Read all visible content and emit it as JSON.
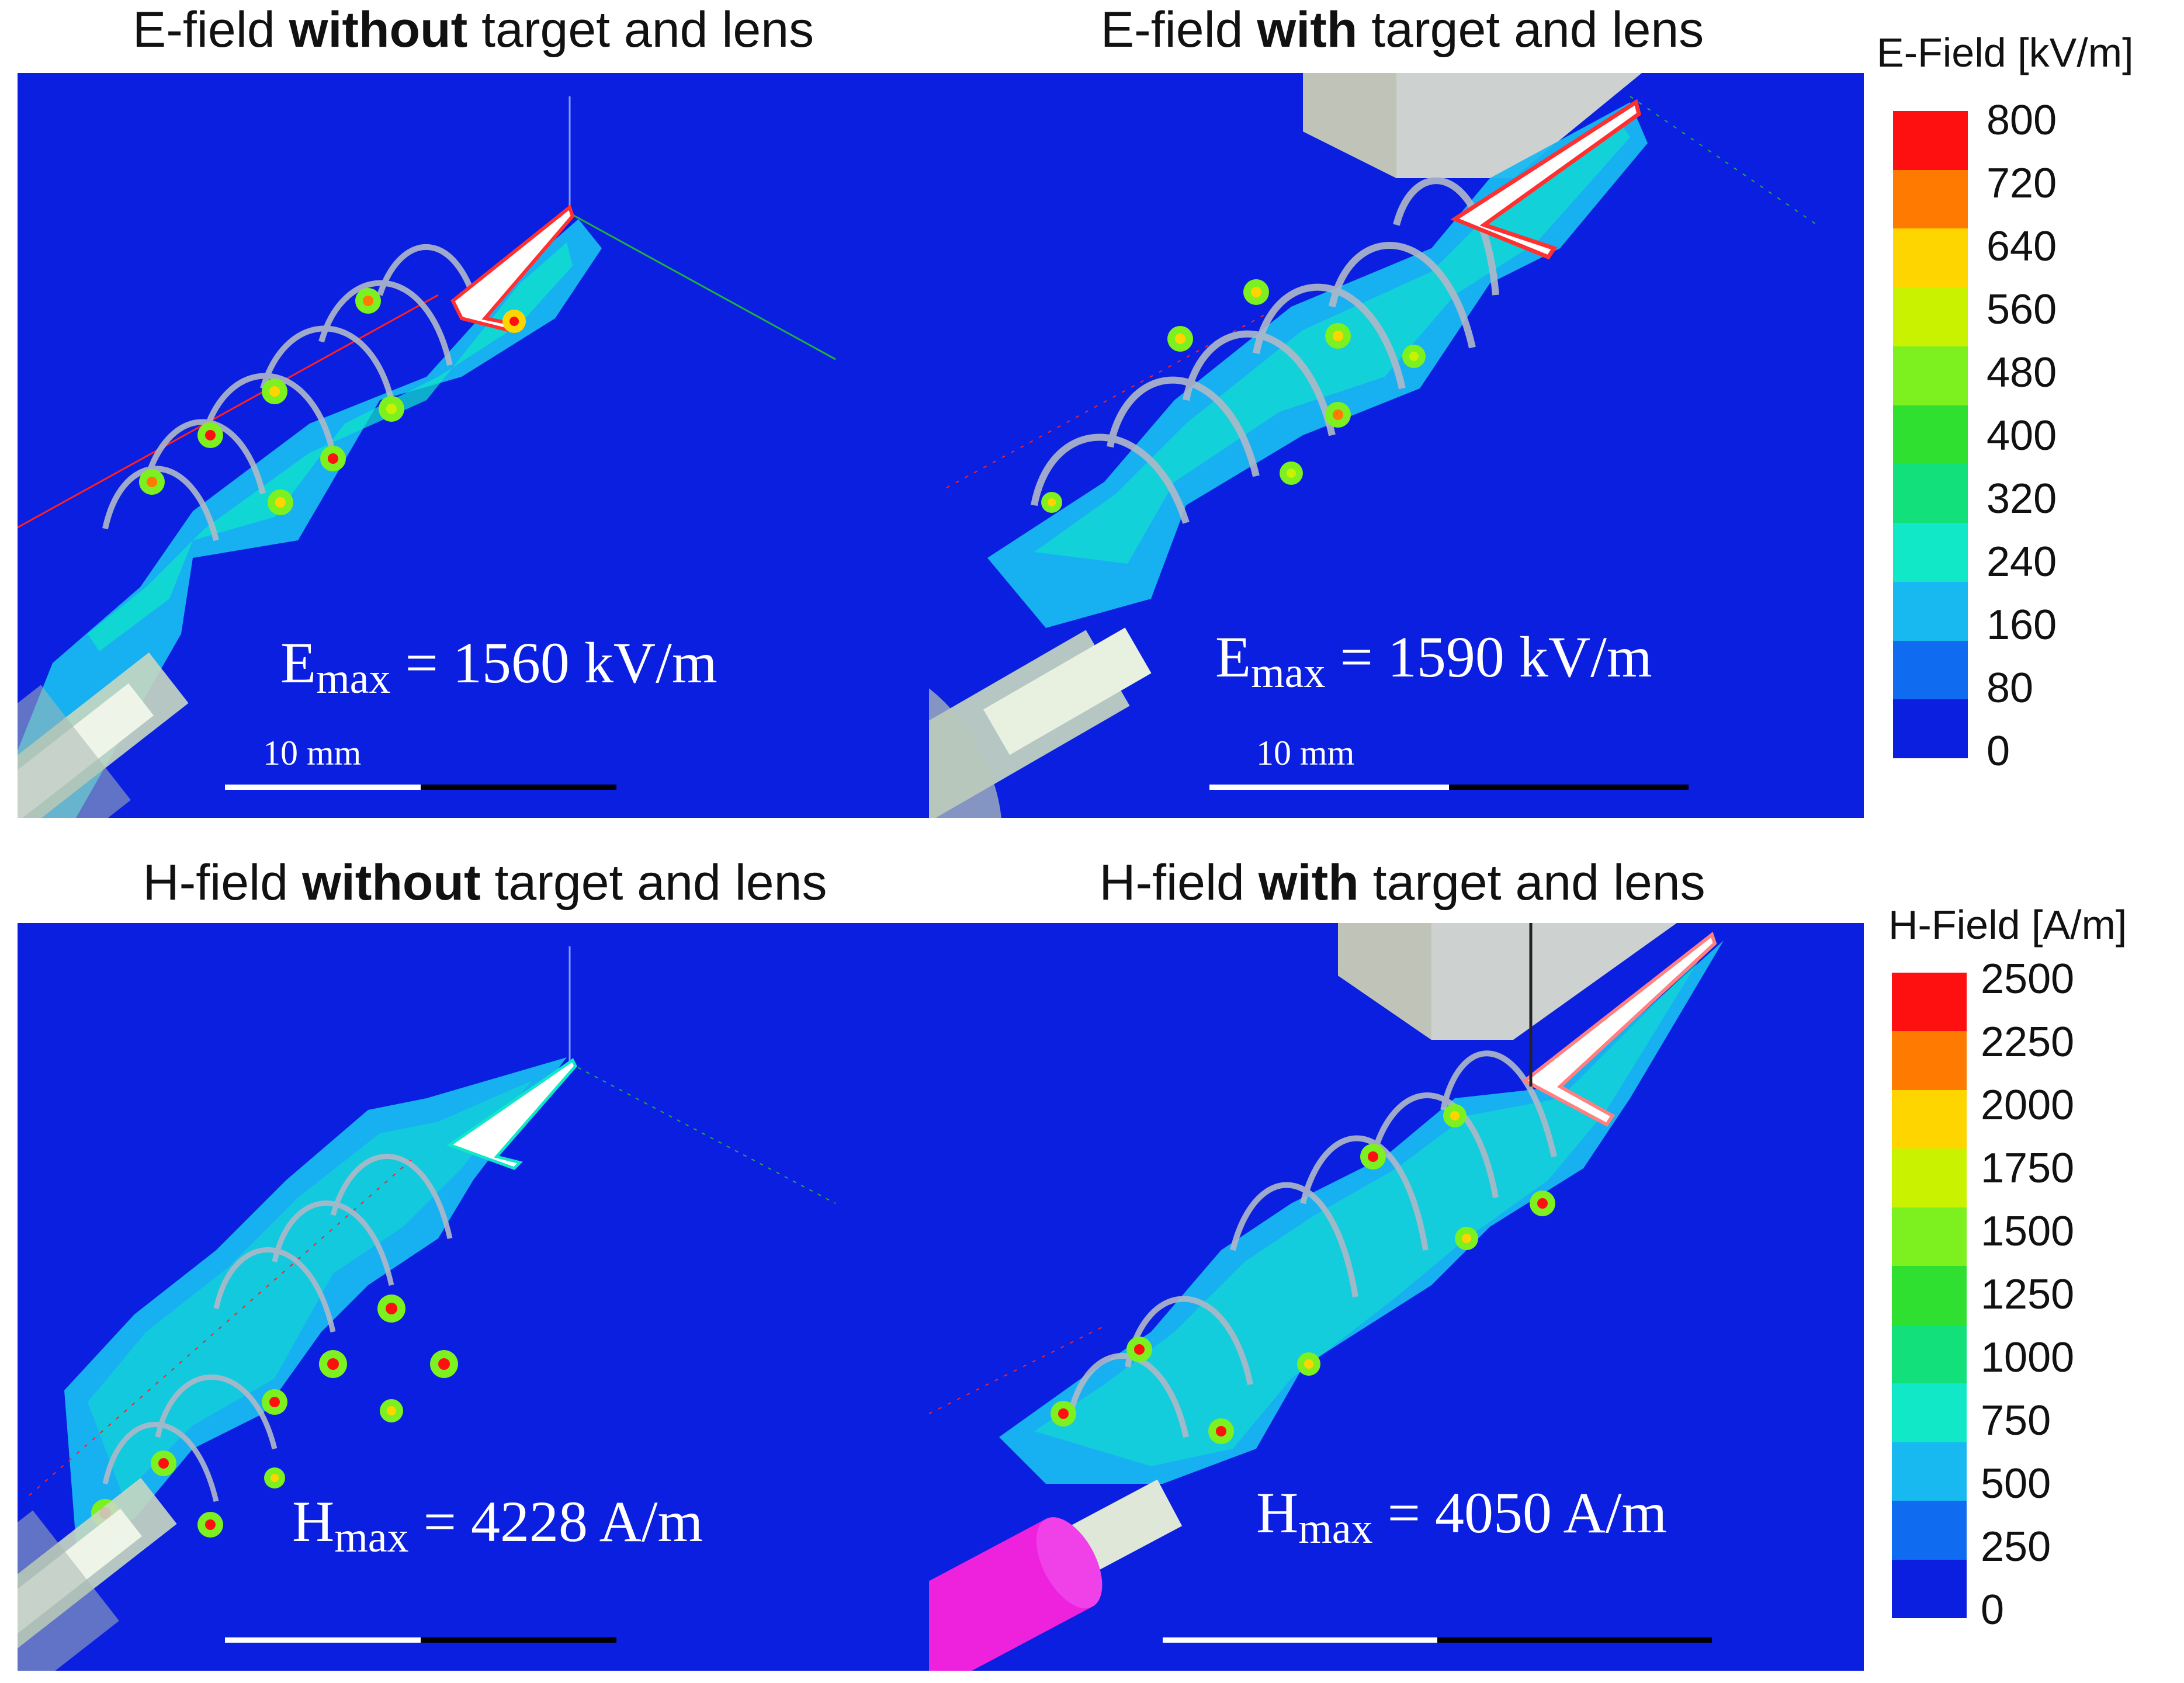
{
  "panels": [
    {
      "id": "e-without",
      "title_prefix": "E-field ",
      "title_bold": "without",
      "title_suffix": " target and lens",
      "max_symbol": "E",
      "max_sub": "max",
      "max_value": "= 1560 kV/m",
      "scale_label": "10 mm"
    },
    {
      "id": "e-with",
      "title_prefix": "E-field ",
      "title_bold": "with",
      "title_suffix": " target and lens",
      "max_symbol": "E",
      "max_sub": "max",
      "max_value": "= 1590 kV/m",
      "scale_label": "10 mm"
    },
    {
      "id": "h-without",
      "title_prefix": "H-field ",
      "title_bold": "without",
      "title_suffix": " target and lens",
      "max_symbol": "H",
      "max_sub": "max",
      "max_value": "= 4228 A/m"
    },
    {
      "id": "h-with",
      "title_prefix": "H-field ",
      "title_bold": "with",
      "title_suffix": " target and lens",
      "max_symbol": "H",
      "max_sub": "max",
      "max_value": "= 4050 A/m"
    }
  ],
  "colorbars": {
    "e": {
      "title": "E-Field [kV/m]",
      "ticks": [
        "800",
        "720",
        "640",
        "560",
        "480",
        "400",
        "320",
        "240",
        "160",
        "80",
        "0"
      ]
    },
    "h": {
      "title": "H-Field [A/m]",
      "ticks": [
        "2500",
        "2250",
        "2000",
        "1750",
        "1500",
        "1250",
        "1000",
        "750",
        "500",
        "250",
        "0"
      ]
    }
  },
  "colormap": [
    "#ff1010",
    "#ff7a00",
    "#ffd500",
    "#c8f200",
    "#7df020",
    "#2fe030",
    "#12e07a",
    "#10e8c8",
    "#18b8f0",
    "#0f6cf0",
    "#0b1fe0"
  ]
}
